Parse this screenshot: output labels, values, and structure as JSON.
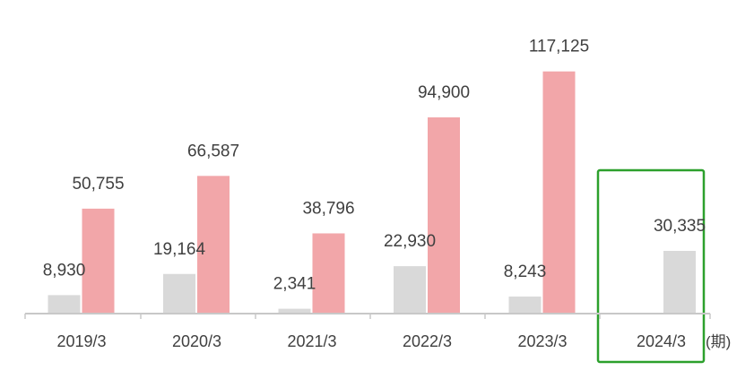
{
  "chart_data": {
    "type": "bar",
    "categories": [
      "2019/3",
      "2020/3",
      "2021/3",
      "2022/3",
      "2023/3",
      "2024/3"
    ],
    "series": [
      {
        "values": [
          8930,
          19164,
          2341,
          22930,
          8243,
          30335
        ],
        "color": "#d9d9d9"
      },
      {
        "values": [
          50755,
          66587,
          38796,
          94900,
          117125,
          null
        ],
        "color": "#f2a6a9"
      }
    ],
    "data_labels": [
      [
        "8,930",
        "19,164",
        "2,341",
        "22,930",
        "8,243",
        "30,335"
      ],
      [
        "50,755",
        "66,587",
        "38,796",
        "94,900",
        "117,125",
        ""
      ]
    ],
    "x_unit": "(期)",
    "ylim": [
      0,
      130000
    ],
    "grid": false,
    "highlighted_category": "2024/3",
    "highlight_color": "#2ca02c",
    "axis_color": "#c8c8c8"
  }
}
